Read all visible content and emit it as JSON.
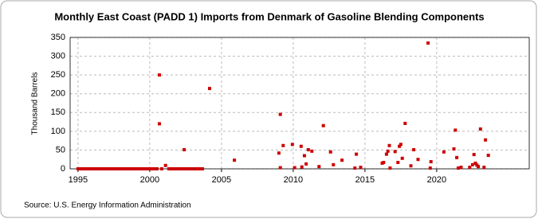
{
  "chart_data": {
    "type": "scatter",
    "title": "Monthly East Coast (PADD 1) Imports from Denmark of Gasoline Blending Components",
    "y_label": "Thousand Barrels",
    "source": "Source: U.S. Energy Information Administration",
    "color": "#cc0000",
    "grid": true,
    "xlim": [
      1994.45,
      2026.45
    ],
    "ylim": [
      0,
      350
    ],
    "xticks": [
      1995,
      2000,
      2005,
      2010,
      2015,
      2020
    ],
    "yticks": [
      0,
      50,
      100,
      150,
      200,
      250,
      300,
      350
    ],
    "x": [
      1995,
      1995.167,
      1995.333,
      1995.5,
      1995.667,
      1995.833,
      1996,
      1996.167,
      1996.333,
      1996.5,
      1996.667,
      1996.833,
      1997,
      1997.167,
      1997.333,
      1997.5,
      1997.667,
      1997.833,
      1998,
      1998.167,
      1998.333,
      1998.5,
      1998.667,
      1998.833,
      1999,
      1999.167,
      1999.333,
      1999.5,
      1999.667,
      1999.833,
      2000,
      2000.167,
      2000.333,
      2000.5,
      2000.833,
      2001.333,
      2001.5,
      2001.667,
      2001.833,
      2002,
      2002.167,
      2002.333,
      2002.5,
      2002.667,
      2002.833,
      2003,
      2003.167,
      2003.333,
      2003.5,
      2003.667,
      2000.67,
      2000.67,
      2001.1,
      2002.4,
      2004.17,
      2005.9,
      2009.0,
      2009.1,
      2009.1,
      2009.3,
      2009.94,
      2010.1,
      2010.55,
      2010.6,
      2010.78,
      2010.9,
      2011.05,
      2011.3,
      2011.8,
      2012.1,
      2012.6,
      2012.8,
      2013.4,
      2014.3,
      2014.4,
      2014.7,
      2016.2,
      2016.3,
      2016.5,
      2016.6,
      2016.7,
      2016.75,
      2017.1,
      2017.3,
      2017.4,
      2017.5,
      2017.6,
      2017.8,
      2018.2,
      2018.4,
      2018.7,
      2019.4,
      2019.55,
      2019.6,
      2020.5,
      2021.2,
      2021.3,
      2021.4,
      2021.5,
      2021.7,
      2022.3,
      2022.5,
      2022.6,
      2022.7,
      2022.8,
      2022.9,
      2023.05,
      2023.3,
      2023.4,
      2023.6
    ],
    "values": [
      0,
      0,
      0,
      0,
      0,
      0,
      0,
      0,
      0,
      0,
      0,
      0,
      0,
      0,
      0,
      0,
      0,
      0,
      0,
      0,
      0,
      0,
      0,
      0,
      0,
      0,
      0,
      0,
      0,
      0,
      0,
      0,
      0,
      0,
      0,
      0,
      0,
      0,
      0,
      0,
      0,
      0,
      0,
      0,
      0,
      0,
      0,
      0,
      0,
      0,
      250,
      120,
      9,
      51,
      214,
      23,
      42,
      145,
      3,
      62,
      65,
      3,
      60,
      5,
      35,
      13,
      51,
      47,
      6,
      115,
      45,
      11,
      23,
      2,
      39,
      4,
      15,
      17,
      39,
      47,
      62,
      2,
      46,
      17,
      60,
      65,
      28,
      121,
      8,
      51,
      25,
      335,
      2,
      19,
      45,
      53,
      103,
      30,
      2,
      4,
      4,
      11,
      38,
      15,
      10,
      6,
      106,
      4,
      77,
      36
    ]
  }
}
